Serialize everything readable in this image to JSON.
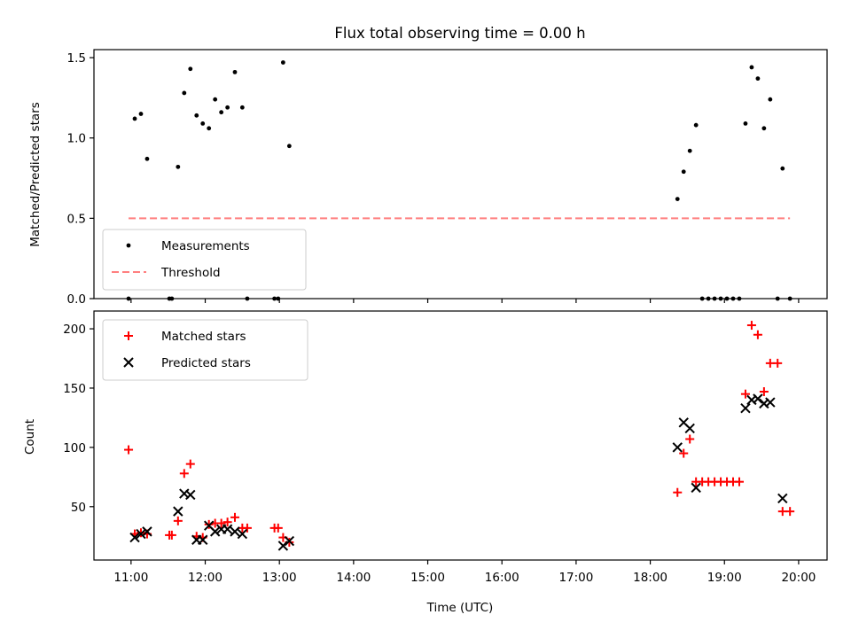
{
  "chart_data": [
    {
      "type": "scatter",
      "title": "Flux total observing time = 0.00 h",
      "ylabel": "Matched/Predicted stars",
      "xlabel": "",
      "xlim": [
        "10:30",
        "20:23"
      ],
      "ylim": [
        0,
        1.55
      ],
      "yticks": [
        "0.0",
        "0.5",
        "1.0",
        "1.5"
      ],
      "x_ticks": [
        "11:00",
        "12:00",
        "13:00",
        "14:00",
        "15:00",
        "16:00",
        "17:00",
        "18:00",
        "19:00",
        "20:00"
      ],
      "legend": {
        "placement": "lower-left",
        "entries": [
          "Measurements",
          "Threshold"
        ]
      },
      "series": [
        {
          "name": "Measurements",
          "marker": "dot",
          "color": "#000000",
          "points": [
            [
              "10:58",
              0.0
            ],
            [
              "11:03",
              1.12
            ],
            [
              "11:08",
              1.15
            ],
            [
              "11:13",
              0.87
            ],
            [
              "11:31",
              0.0
            ],
            [
              "11:33",
              0.0
            ],
            [
              "11:38",
              0.82
            ],
            [
              "11:43",
              1.28
            ],
            [
              "11:48",
              1.43
            ],
            [
              "11:53",
              1.14
            ],
            [
              "11:58",
              1.09
            ],
            [
              "12:03",
              1.06
            ],
            [
              "12:08",
              1.24
            ],
            [
              "12:13",
              1.16
            ],
            [
              "12:18",
              1.19
            ],
            [
              "12:24",
              1.41
            ],
            [
              "12:30",
              1.19
            ],
            [
              "12:34",
              0.0
            ],
            [
              "12:56",
              0.0
            ],
            [
              "12:59",
              0.0
            ],
            [
              "13:03",
              1.47
            ],
            [
              "13:08",
              0.95
            ],
            [
              "18:22",
              0.62
            ],
            [
              "18:27",
              0.79
            ],
            [
              "18:32",
              0.92
            ],
            [
              "18:37",
              1.08
            ],
            [
              "18:42",
              0.0
            ],
            [
              "18:47",
              0.0
            ],
            [
              "18:52",
              0.0
            ],
            [
              "18:57",
              0.0
            ],
            [
              "19:02",
              0.0
            ],
            [
              "19:07",
              0.0
            ],
            [
              "19:12",
              0.0
            ],
            [
              "19:17",
              1.09
            ],
            [
              "19:22",
              1.44
            ],
            [
              "19:27",
              1.37
            ],
            [
              "19:32",
              1.06
            ],
            [
              "19:37",
              1.24
            ],
            [
              "19:43",
              0.0
            ],
            [
              "19:47",
              0.81
            ],
            [
              "19:53",
              0.0
            ]
          ]
        },
        {
          "name": "Threshold",
          "line": "dashed",
          "color": "#ff7f7f",
          "points": [
            [
              "10:58",
              0.5
            ],
            [
              "19:53",
              0.5
            ]
          ]
        }
      ]
    },
    {
      "type": "scatter",
      "title": "",
      "ylabel": "Count",
      "xlabel": "Time (UTC)",
      "xlim": [
        "10:30",
        "20:23"
      ],
      "ylim": [
        5,
        215
      ],
      "yticks": [
        "50",
        "100",
        "150",
        "200"
      ],
      "x_ticks": [
        "11:00",
        "12:00",
        "13:00",
        "14:00",
        "15:00",
        "16:00",
        "17:00",
        "18:00",
        "19:00",
        "20:00"
      ],
      "legend": {
        "placement": "upper-left",
        "entries": [
          "Matched stars",
          "Predicted stars"
        ]
      },
      "series": [
        {
          "name": "Matched stars",
          "marker": "plus",
          "color": "#ff0000",
          "points": [
            [
              "10:58",
              98
            ],
            [
              "11:03",
              27
            ],
            [
              "11:08",
              28
            ],
            [
              "11:13",
              27
            ],
            [
              "11:31",
              26
            ],
            [
              "11:33",
              26
            ],
            [
              "11:38",
              38
            ],
            [
              "11:43",
              78
            ],
            [
              "11:48",
              86
            ],
            [
              "11:53",
              25
            ],
            [
              "11:58",
              24
            ],
            [
              "12:03",
              35
            ],
            [
              "12:08",
              36
            ],
            [
              "12:13",
              36
            ],
            [
              "12:18",
              37
            ],
            [
              "12:24",
              41
            ],
            [
              "12:30",
              32
            ],
            [
              "12:34",
              32
            ],
            [
              "12:56",
              32
            ],
            [
              "12:59",
              32
            ],
            [
              "13:03",
              24
            ],
            [
              "13:08",
              20
            ],
            [
              "18:22",
              62
            ],
            [
              "18:27",
              95
            ],
            [
              "18:32",
              107
            ],
            [
              "18:37",
              71
            ],
            [
              "18:42",
              71
            ],
            [
              "18:47",
              71
            ],
            [
              "18:52",
              71
            ],
            [
              "18:57",
              71
            ],
            [
              "19:02",
              71
            ],
            [
              "19:07",
              71
            ],
            [
              "19:12",
              71
            ],
            [
              "19:17",
              145
            ],
            [
              "19:22",
              203
            ],
            [
              "19:27",
              195
            ],
            [
              "19:32",
              147
            ],
            [
              "19:37",
              171
            ],
            [
              "19:43",
              171
            ],
            [
              "19:47",
              46
            ],
            [
              "19:53",
              46
            ]
          ]
        },
        {
          "name": "Predicted stars",
          "marker": "cross",
          "color": "#000000",
          "points": [
            [
              "11:03",
              24
            ],
            [
              "11:08",
              27
            ],
            [
              "11:13",
              29
            ],
            [
              "11:38",
              46
            ],
            [
              "11:43",
              61
            ],
            [
              "11:48",
              60
            ],
            [
              "11:53",
              22
            ],
            [
              "11:58",
              22
            ],
            [
              "12:03",
              34
            ],
            [
              "12:08",
              29
            ],
            [
              "12:13",
              31
            ],
            [
              "12:18",
              31
            ],
            [
              "12:24",
              29
            ],
            [
              "12:30",
              27
            ],
            [
              "13:03",
              17
            ],
            [
              "13:08",
              21
            ],
            [
              "18:22",
              100
            ],
            [
              "18:27",
              121
            ],
            [
              "18:32",
              116
            ],
            [
              "18:37",
              66
            ],
            [
              "19:17",
              133
            ],
            [
              "19:22",
              140
            ],
            [
              "19:27",
              141
            ],
            [
              "19:32",
              137
            ],
            [
              "19:37",
              138
            ],
            [
              "19:47",
              57
            ]
          ]
        }
      ]
    }
  ]
}
